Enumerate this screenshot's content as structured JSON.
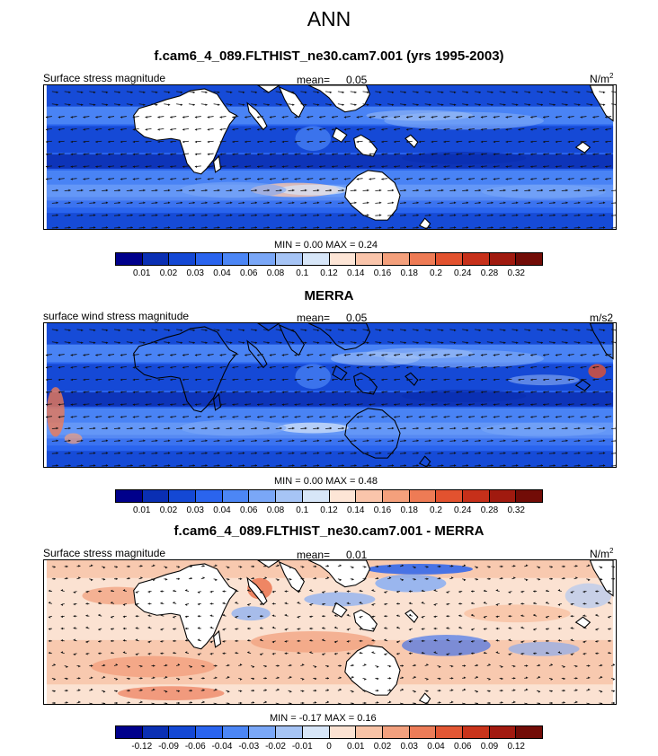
{
  "title": "ANN",
  "colors": {
    "seq": [
      "#00008b",
      "#0a2fb3",
      "#1448d4",
      "#2a64ee",
      "#4c86f5",
      "#7aa7f7",
      "#a6c4f5",
      "#d7e6f8",
      "#fde5d6",
      "#fac5ab",
      "#f4a07c",
      "#ee7b55",
      "#e2522f",
      "#c6301a",
      "#a01a0f",
      "#720c07"
    ],
    "diff": [
      "#00008b",
      "#0a2fb3",
      "#1448d4",
      "#2a64ee",
      "#4c86f5",
      "#7aa7f7",
      "#a6c4f5",
      "#d7e6f8",
      "#fbe2d2",
      "#f8c3a6",
      "#f2a07e",
      "#ec7c58",
      "#e25734",
      "#c9341b",
      "#a21a10",
      "#720c07"
    ],
    "land": "#ffffff"
  },
  "panels": [
    {
      "title": "f.cam6_4_089.FLTHIST_ne30.cam7.001 (yrs 1995-2003)",
      "left_label": "Surface stress magnitude",
      "mean_label": "mean=",
      "mean_value": "0.05",
      "units": "N/m",
      "units_sup": "2",
      "minmax": "MIN =   0.00 MAX =    0.24",
      "ticks": [
        "0.01",
        "0.02",
        "0.03",
        "0.04",
        "0.06",
        "0.08",
        "0.1",
        "0.12",
        "0.14",
        "0.16",
        "0.18",
        "0.2",
        "0.24",
        "0.28",
        "0.32"
      ]
    },
    {
      "title": "MERRA",
      "left_label": "surface wind stress magnitude",
      "mean_label": "mean=",
      "mean_value": "0.05",
      "units": "m/s2",
      "units_sup": "",
      "minmax": "MIN =   0.00 MAX =    0.48",
      "ticks": [
        "0.01",
        "0.02",
        "0.03",
        "0.04",
        "0.06",
        "0.08",
        "0.1",
        "0.12",
        "0.14",
        "0.16",
        "0.18",
        "0.2",
        "0.24",
        "0.28",
        "0.32"
      ]
    },
    {
      "title": "f.cam6_4_089.FLTHIST_ne30.cam7.001 - MERRA",
      "left_label": "Surface stress magnitude",
      "mean_label": "mean=",
      "mean_value": "0.01",
      "units": "N/m",
      "units_sup": "2",
      "minmax": "MIN =  -0.17 MAX =    0.16",
      "ticks": [
        "-0.12",
        "-0.09",
        "-0.06",
        "-0.04",
        "-0.03",
        "-0.02",
        "-0.01",
        "0",
        "0.01",
        "0.02",
        "0.03",
        "0.04",
        "0.06",
        "0.09",
        "0.12"
      ]
    }
  ],
  "chart_data": [
    {
      "type": "heatmap",
      "title": "f.cam6_4_089.FLTHIST_ne30.cam7.001 (yrs 1995-2003)",
      "variable": "Surface stress magnitude",
      "units": "N/m2",
      "mean": 0.05,
      "min": 0.0,
      "max": 0.24,
      "colorbar_levels": [
        0.01,
        0.02,
        0.03,
        0.04,
        0.06,
        0.08,
        0.1,
        0.12,
        0.14,
        0.16,
        0.18,
        0.2,
        0.24,
        0.28,
        0.32
      ],
      "overlay": "wind stress vectors"
    },
    {
      "type": "heatmap",
      "title": "MERRA",
      "variable": "surface wind stress magnitude",
      "units": "m/s2",
      "mean": 0.05,
      "min": 0.0,
      "max": 0.48,
      "colorbar_levels": [
        0.01,
        0.02,
        0.03,
        0.04,
        0.06,
        0.08,
        0.1,
        0.12,
        0.14,
        0.16,
        0.18,
        0.2,
        0.24,
        0.28,
        0.32
      ],
      "overlay": "wind stress vectors"
    },
    {
      "type": "heatmap",
      "title": "f.cam6_4_089.FLTHIST_ne30.cam7.001 - MERRA",
      "variable": "Surface stress magnitude",
      "units": "N/m2",
      "mean": 0.01,
      "min": -0.17,
      "max": 0.16,
      "colorbar_levels": [
        -0.12,
        -0.09,
        -0.06,
        -0.04,
        -0.03,
        -0.02,
        -0.01,
        0,
        0.01,
        0.02,
        0.03,
        0.04,
        0.06,
        0.09,
        0.12
      ],
      "overlay": "wind stress difference vectors"
    }
  ]
}
